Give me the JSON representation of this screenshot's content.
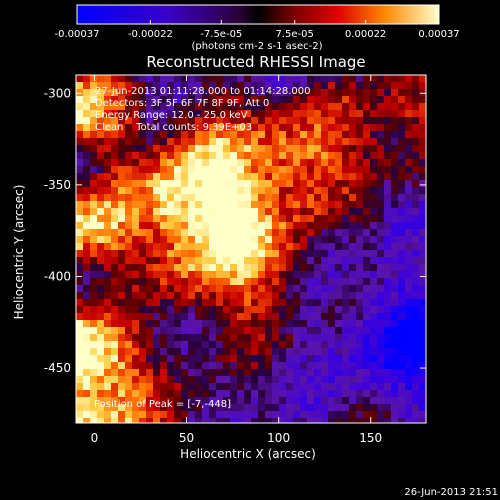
{
  "colorbar": {
    "tick_labels": [
      "-0.00037",
      "-0.00022",
      "-7.5e-05",
      "7.5e-05",
      "0.00022",
      "0.00037"
    ],
    "tick_values": [
      -0.00037,
      -0.00022,
      -7.5e-05,
      7.5e-05,
      0.00022,
      0.00037
    ],
    "range": [
      -0.00037,
      0.00037
    ],
    "unit_label": "(photons cm-2 s-1 asec-2)"
  },
  "chart_data": {
    "type": "heatmap",
    "title": "Reconstructed RHESSI Image",
    "xlabel": "Heliocentric X (arcsec)",
    "ylabel": "Heliocentric Y (arcsec)",
    "xlim": [
      -10,
      180
    ],
    "ylim": [
      -480,
      -290
    ],
    "x_ticks": [
      0,
      50,
      100,
      150
    ],
    "y_ticks": [
      -300,
      -350,
      -400,
      -450
    ],
    "annotations": [
      "27-Jun-2013 01:11:28.000 to 01:14:28.000",
      "Detectors: 3F 5F 6F 7F 8F 9F, Att 0",
      "Energy Range: 12.0 - 25.0 keV",
      "Clean    Total counts: 9.39E+03"
    ],
    "peak_label": "Position of Peak = [-7,-448]",
    "peak_position": [
      -7,
      -448
    ]
  },
  "footer": {
    "timestamp": "26-Jun-2013 21:51"
  }
}
